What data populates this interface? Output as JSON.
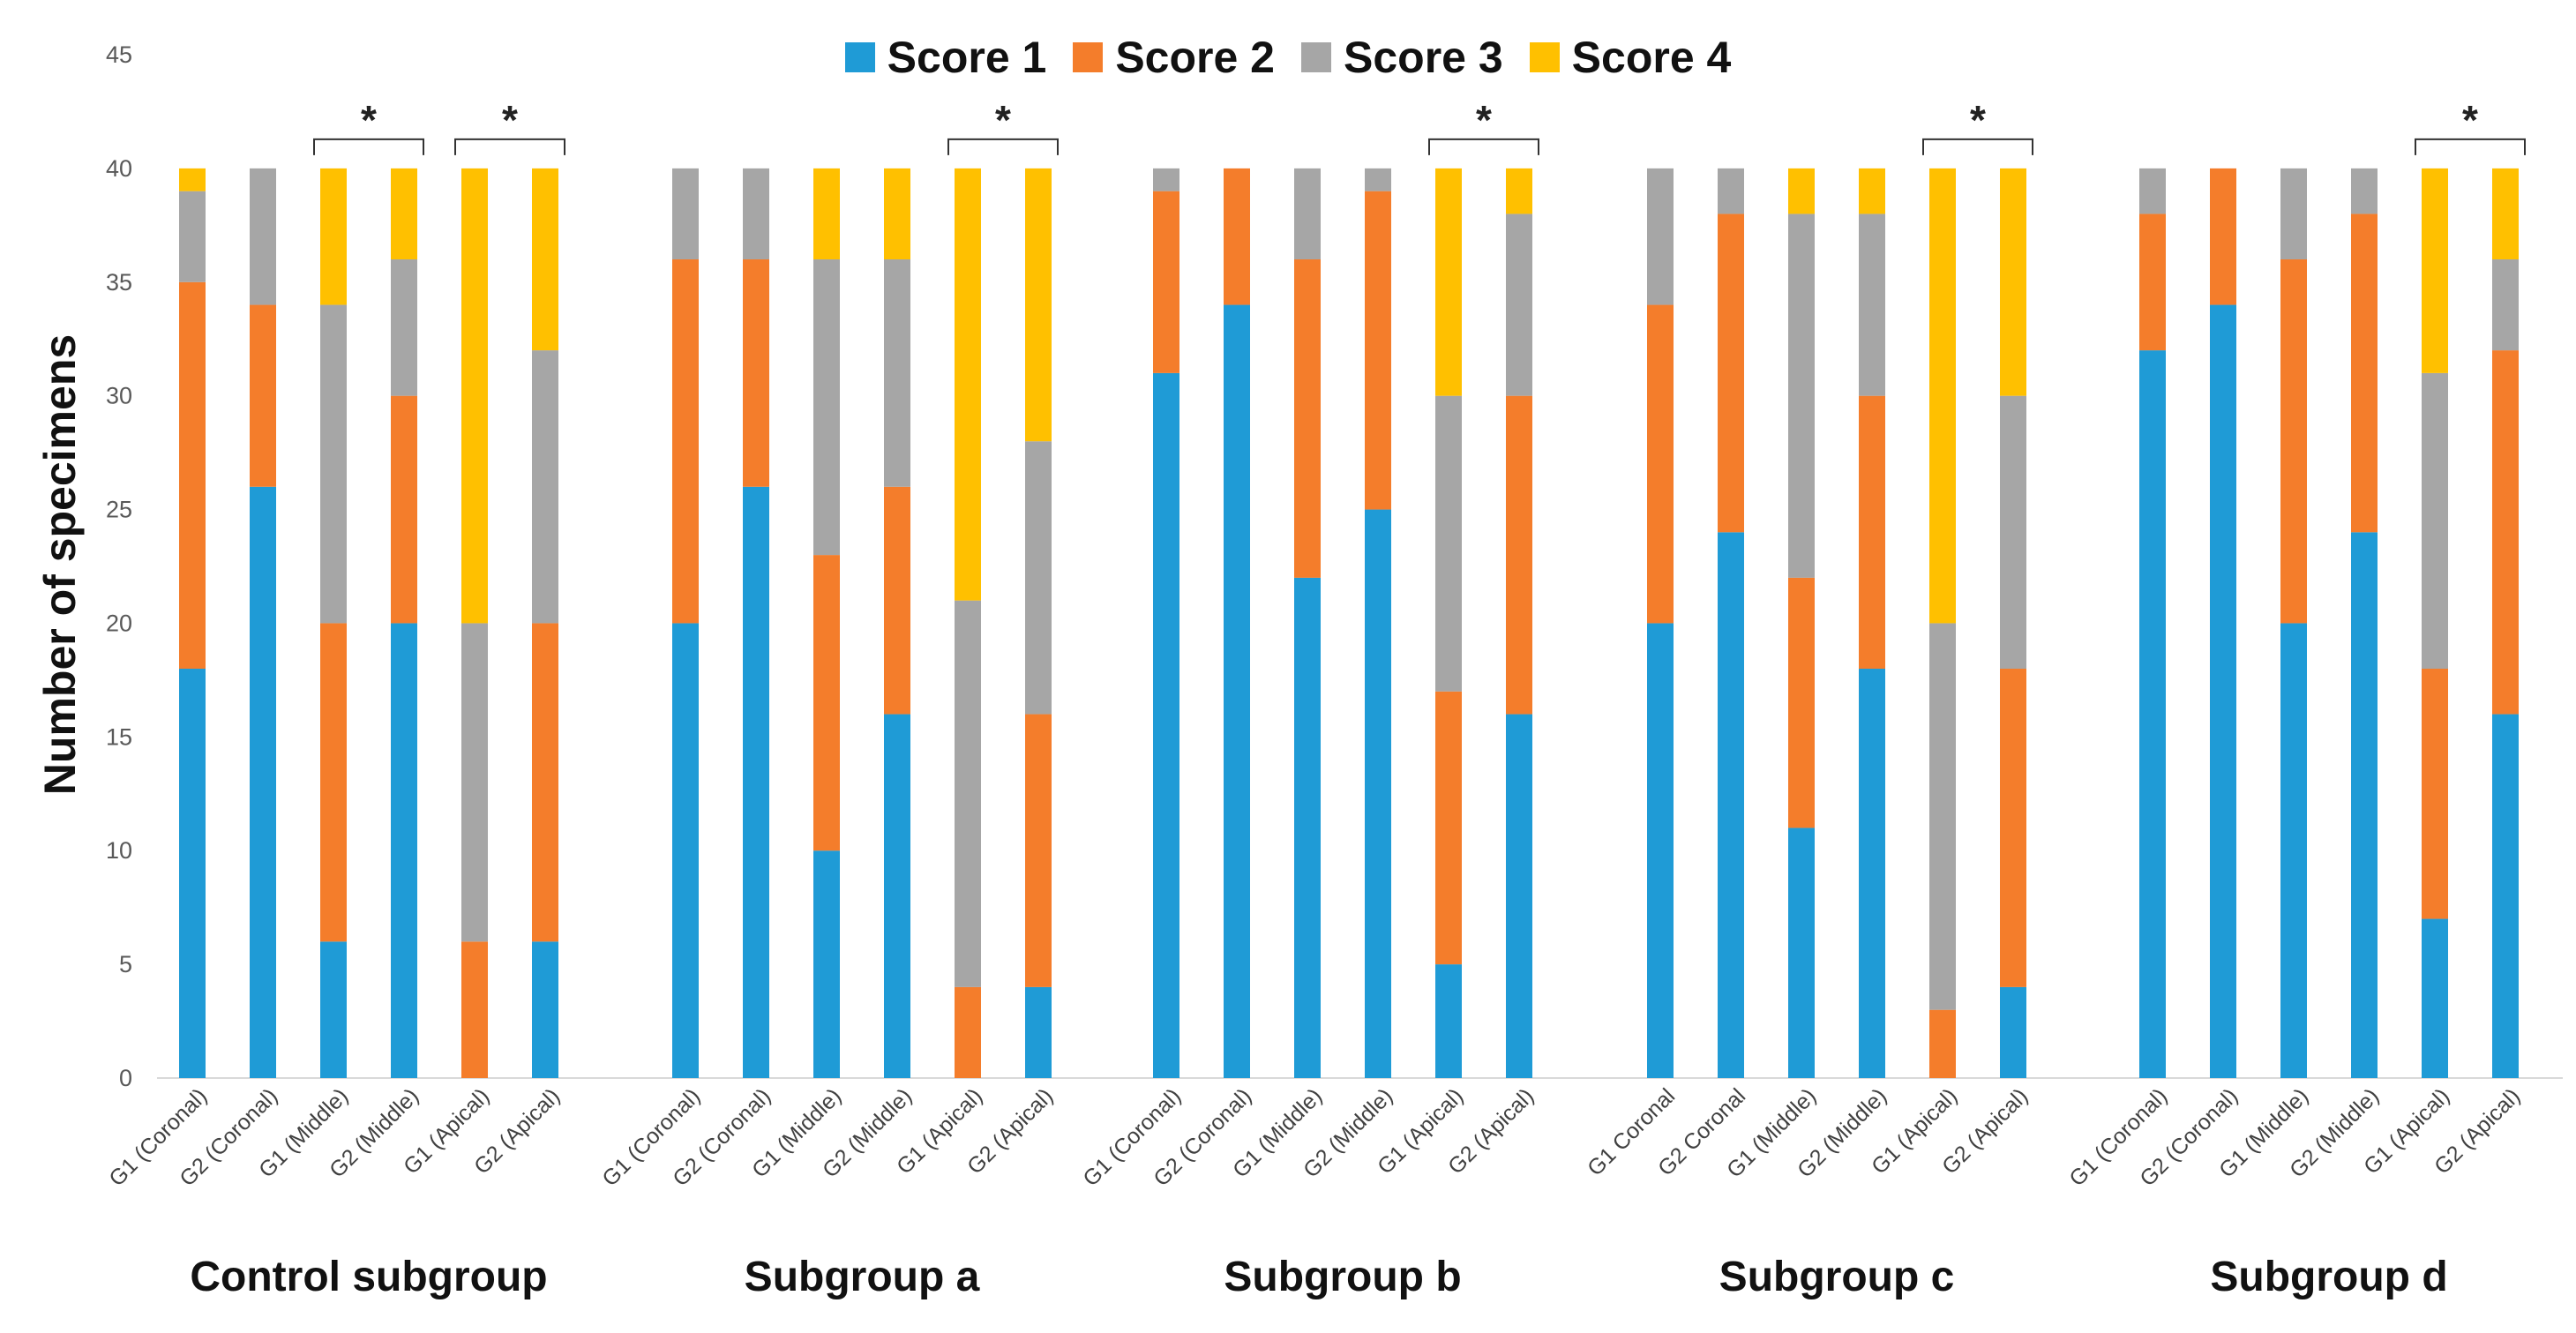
{
  "chart_data": {
    "type": "bar",
    "stacked": true,
    "ylabel": "Number of specimens",
    "ylim": [
      0,
      45
    ],
    "yticks": [
      0,
      5,
      10,
      15,
      20,
      25,
      30,
      35,
      40,
      45
    ],
    "series_names": [
      "Score 1",
      "Score 2",
      "Score 3",
      "Score 4"
    ],
    "colors": {
      "Score 1": "#1f9bd6",
      "Score 2": "#f47d2b",
      "Score 3": "#a6a6a6",
      "Score 4": "#ffc000"
    },
    "significance_marker": "*",
    "groups": [
      {
        "name": "Control subgroup",
        "bars": [
          {
            "label": "G1 (Coronal)",
            "values": [
              18,
              17,
              4,
              1
            ]
          },
          {
            "label": "G2 (Coronal)",
            "values": [
              26,
              8,
              6,
              0
            ]
          },
          {
            "label": "G1 (Middle)",
            "values": [
              6,
              14,
              14,
              6
            ]
          },
          {
            "label": "G2 (Middle)",
            "values": [
              20,
              10,
              6,
              4
            ]
          },
          {
            "label": "G1 (Apical)",
            "values": [
              0,
              6,
              14,
              20
            ]
          },
          {
            "label": "G2 (Apical)",
            "values": [
              6,
              14,
              12,
              8
            ]
          }
        ],
        "significance": [
          [
            2,
            3
          ],
          [
            4,
            5
          ]
        ]
      },
      {
        "name": "Subgroup a",
        "bars": [
          {
            "label": "G1 (Coronal)",
            "values": [
              20,
              16,
              4,
              0
            ]
          },
          {
            "label": "G2 (Coronal)",
            "values": [
              26,
              10,
              4,
              0
            ]
          },
          {
            "label": "G1 (Middle)",
            "values": [
              10,
              13,
              13,
              4
            ]
          },
          {
            "label": "G2 (Middle)",
            "values": [
              16,
              10,
              10,
              4
            ]
          },
          {
            "label": "G1 (Apical)",
            "values": [
              0,
              4,
              17,
              19
            ]
          },
          {
            "label": "G2 (Apical)",
            "values": [
              4,
              12,
              12,
              12
            ]
          }
        ],
        "significance": [
          [
            4,
            5
          ]
        ]
      },
      {
        "name": "Subgroup b",
        "bars": [
          {
            "label": "G1 (Coronal)",
            "values": [
              31,
              8,
              1,
              0
            ]
          },
          {
            "label": "G2 (Coronal)",
            "values": [
              34,
              6,
              0,
              0
            ]
          },
          {
            "label": "G1 (Middle)",
            "values": [
              22,
              14,
              4,
              0
            ]
          },
          {
            "label": "G2 (Middle)",
            "values": [
              25,
              14,
              1,
              0
            ]
          },
          {
            "label": "G1 (Apical)",
            "values": [
              5,
              12,
              13,
              10
            ]
          },
          {
            "label": "G2 (Apical)",
            "values": [
              16,
              14,
              8,
              2
            ]
          }
        ],
        "significance": [
          [
            4,
            5
          ]
        ]
      },
      {
        "name": "Subgroup c",
        "bars": [
          {
            "label": "G1 Coronal",
            "values": [
              20,
              14,
              6,
              0
            ]
          },
          {
            "label": "G2 Coronal",
            "values": [
              24,
              14,
              2,
              0
            ]
          },
          {
            "label": "G1 (Middle)",
            "values": [
              11,
              11,
              16,
              2
            ]
          },
          {
            "label": "G2 (Middle)",
            "values": [
              18,
              12,
              8,
              2
            ]
          },
          {
            "label": "G1 (Apical)",
            "values": [
              0,
              3,
              17,
              20
            ]
          },
          {
            "label": "G2 (Apical)",
            "values": [
              4,
              14,
              12,
              10
            ]
          }
        ],
        "significance": [
          [
            4,
            5
          ]
        ]
      },
      {
        "name": "Subgroup d",
        "bars": [
          {
            "label": "G1 (Coronal)",
            "values": [
              32,
              6,
              2,
              0
            ]
          },
          {
            "label": "G2 (Coronal)",
            "values": [
              34,
              6,
              0,
              0
            ]
          },
          {
            "label": "G1 (Middle)",
            "values": [
              20,
              16,
              4,
              0
            ]
          },
          {
            "label": "G2 (Middle)",
            "values": [
              24,
              14,
              2,
              0
            ]
          },
          {
            "label": "G1 (Apical)",
            "values": [
              7,
              11,
              13,
              9
            ]
          },
          {
            "label": "G2 (Apical)",
            "values": [
              16,
              16,
              4,
              4
            ]
          }
        ],
        "significance": [
          [
            4,
            5
          ]
        ]
      }
    ]
  }
}
